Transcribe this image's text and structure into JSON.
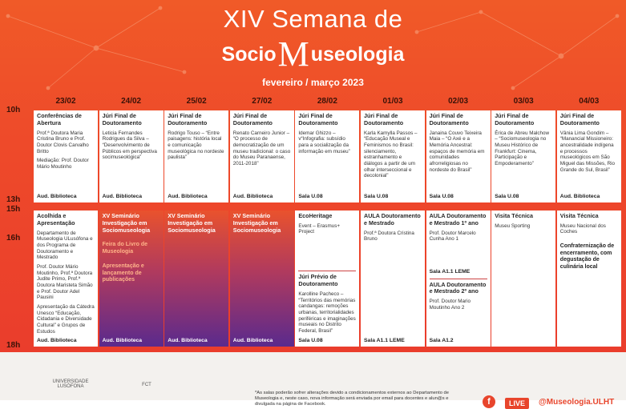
{
  "header": {
    "line1": "XIV Semana de",
    "line2_start": "Socio",
    "line2_letter": "M",
    "line2_end": "useologia",
    "subtitle": "fevereiro / março 2023"
  },
  "times": [
    "10h",
    "13h",
    "15h",
    "16h",
    "18h"
  ],
  "days": [
    "23/02",
    "24/02",
    "25/02",
    "27/02",
    "28/02",
    "01/03",
    "02/03",
    "03/03",
    "04/03"
  ],
  "morning": [
    {
      "blocks": [
        {
          "title": "Conferências de Abertura",
          "lines": [
            "Prof.ª Doutora Maria Cristina Bruno e Prof. Doutor Clovis Carvalho Britto",
            "Mediação: Prof. Doutor Mário Moutinho"
          ],
          "place": "Aud. Biblioteca"
        }
      ]
    },
    {
      "blocks": [
        {
          "title": "Júri Final de Doutoramento",
          "lines": [
            "Leticia Fernandes Rodrigues da Silva – “Desenvolvimento de Públicos em perspectiva socimuseológica”"
          ],
          "place": "Aud. Biblioteca"
        }
      ]
    },
    {
      "blocks": [
        {
          "title": "Júri Final de Doutoramento",
          "lines": [
            "Rodrigo Touso – “Entre paisagens: história local e comunicação museológica no nordeste paulista”"
          ],
          "place": "Aud. Biblioteca"
        }
      ]
    },
    {
      "blocks": [
        {
          "title": "Júri Final de Doutoramento",
          "lines": [
            "Renato Carneiro Junior – “O processo de democratização de um museu tradicional: o caso do Museu Paranaense, 2011-2018”"
          ],
          "place": "Aud. Biblioteca"
        }
      ]
    },
    {
      "blocks": [
        {
          "title": "Júri Final de Doutoramento",
          "lines": [
            "Idemar Ghizzo – v“Infografia: subsídio para a socialização da informação em museu”"
          ],
          "place": "Sala U.08"
        }
      ]
    },
    {
      "blocks": [
        {
          "title": "Júri Final de Doutoramento",
          "lines": [
            "Karla Kamylla Passos – “Educação Museal e Feminismos no Brasil: silenciamento, estranhamento e diálogos a partir de um olhar interseccional e decolonial”"
          ],
          "place": "Sala U.08"
        }
      ]
    },
    {
      "blocks": [
        {
          "title": "Júri Final de Doutoramento",
          "lines": [
            "Janaina Couvo Teixeira Maia – “O Axé e a Memória Ancestral: espaços de memória em comunidades afrorreligiosas no nordeste do Brasil”"
          ],
          "place": "Sala U.08"
        }
      ]
    },
    {
      "blocks": [
        {
          "title": "Júri Final de Doutoramento",
          "lines": [
            "Érica de Abreu Malchow – “Sociomuseologia no Museu Histórico de Frankfurt: Cinema, Participação e Empoderamento”"
          ],
          "place": "Sala U.08"
        }
      ]
    },
    {
      "blocks": [
        {
          "title": "Júri Final de Doutoramento",
          "lines": [
            "Vânia Lima Gondim – “Manancial Missioneiro: ancestralidade indígena e processos museológicos em São Miguel das Missões, Rio Grande do Sul, Brasil”"
          ],
          "place": "Aud. Biblioteca"
        }
      ]
    }
  ],
  "afternoon": [
    {
      "blocks": [
        {
          "title": "Acolhida e Apresentação",
          "lines": [
            "Departamento de Museologia ULusófona e dos Programa de Doutoramento e Mestrado",
            "Prof. Doutor Mário Moutinho, Prof.ª Doutora Judite Primo, Prof.ª Doutora Maristeta Simão e Prof. Doutor Adel Pausini",
            "Apresentação da Cátedra Unesco “Educação, Cidadania e Diversidade Cultural” e Grupos de Estudos"
          ],
          "place": "Aud. Biblioteca"
        }
      ]
    },
    {
      "fill": "purple",
      "blocks": [
        {
          "title": "XV Seminário Investigação em Sociomuseologia",
          "notes": [
            "Feira do Livro de Museologia",
            "Apresentação e lançamento de publicações"
          ],
          "place": "Aud. Biblioteca"
        }
      ]
    },
    {
      "fill": "purple",
      "blocks": [
        {
          "title": "XV Seminário Investigação em Sociomuseologia",
          "place": "Aud. Biblioteca"
        }
      ]
    },
    {
      "fill": "purple",
      "blocks": [
        {
          "title": "XV Seminário Investigação em Sociomuseologia",
          "place": "Aud. Biblioteca"
        }
      ]
    },
    {
      "blocks": [
        {
          "title": "EcoHeritage",
          "lines": [
            "Event – Erasmus+ Project"
          ]
        },
        {
          "title": "Júri Prévio de Doutoramento",
          "lines": [
            "Karolline Pacheco – “Territórios das memórias candangas: remoções urbanas, territorialidades periféricas e imaginações museais no Distrito Federal, Brasil”"
          ],
          "place": "Sala U.08"
        }
      ]
    },
    {
      "blocks": [
        {
          "title": "AULA Doutoramento e Mestrado",
          "lines": [
            "Prof.ª Doutora Cristina Bruno"
          ],
          "place": "Sala A1.1 LEME"
        }
      ]
    },
    {
      "blocks": [
        {
          "title": "AULA Doutoramento e Mestrado 1º ano",
          "lines": [
            "Prof. Doutor Marcelo Cunha Ano 1"
          ],
          "place": "Sala A1.1 LEME"
        },
        {
          "title": "AULA Doutoramento e Mestrado 2º ano",
          "lines": [
            "Prof. Doutor Mario Moutinho Ano 2"
          ],
          "place": "Sala A1.2"
        }
      ]
    },
    {
      "blocks": [
        {
          "title": "Visita Técnica",
          "lines": [
            "Museu Sporting"
          ]
        }
      ]
    },
    {
      "blocks": [
        {
          "title": "Visita Técnica",
          "lines": [
            "Museu Nacional dos Coches"
          ],
          "notes": [
            "Confraternização de encerramento, com degustação de culinária local"
          ]
        }
      ]
    }
  ],
  "footer": {
    "logos": [
      "UNIVERSIDADE LUSÓFONA",
      "FCT"
    ],
    "note": "*As salas poderão sofrer alterações devido a condicionamentos externos ao Departamento de Museologia e, neste caso, nova informação será enviada por email para docentes e alun@s e divulgada na página de Facebook.",
    "live": "LIVE",
    "handle": "@Museologia.ULHT"
  }
}
